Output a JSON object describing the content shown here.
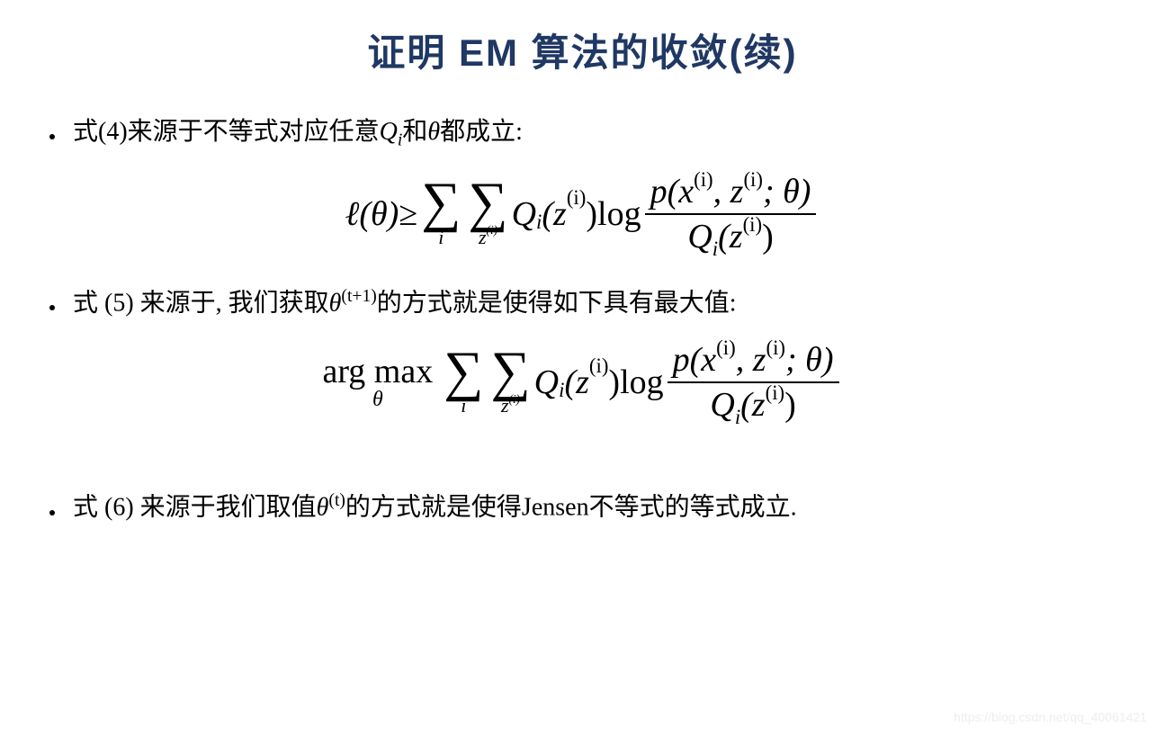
{
  "colors": {
    "title_color": "#1f3864",
    "text_color": "#000000",
    "background": "#ffffff",
    "watermark_color": "#eeeeee"
  },
  "typography": {
    "title_fontsize": 42,
    "body_fontsize": 28,
    "equation_fontsize": 38,
    "title_font": "SimHei",
    "body_font": "SimSun",
    "math_font": "Times New Roman"
  },
  "title": "证明 EM 算法的收敛(续)",
  "bullet1_pre": "式(4)来源于不等式对应任意",
  "bullet1_q": "Q",
  "bullet1_qi": "i",
  "bullet1_and": "和",
  "bullet1_theta": "θ",
  "bullet1_post": "都成立:",
  "eq1": {
    "lhs_ell": "ℓ",
    "lhs_theta": "(θ)",
    "geq": " ≥ ",
    "sum1_sym": "∑",
    "sum1_idx": "i",
    "sum2_sym": "∑",
    "sum2_idx_z": "z",
    "sum2_idx_sup": "(i)",
    "Qi": "Q",
    "Qi_sub": "i",
    "Qi_arg": "(z",
    "Qi_arg_sup": "(i)",
    "Qi_close": ")",
    "log": " log ",
    "frac_num_p": "p(x",
    "frac_num_sup1": "(i)",
    "frac_num_comma": ", z",
    "frac_num_sup2": "(i)",
    "frac_num_theta": "; θ)",
    "frac_den_Q": "Q",
    "frac_den_Qi": "i",
    "frac_den_arg": "(z",
    "frac_den_sup": "(i)",
    "frac_den_close": ")"
  },
  "bullet2_pre": "式 (5) 来源于, 我们获取",
  "bullet2_theta": "θ",
  "bullet2_sup": "(t+1)",
  "bullet2_post": "的方式就是使得如下具有最大值:",
  "eq2": {
    "argmax_text": "arg max",
    "argmax_sub": "θ",
    "sum1_sym": "∑",
    "sum1_idx": "i",
    "sum2_sym": "∑",
    "sum2_idx_z": "z",
    "sum2_idx_sup": "(i)",
    "Qi": "Q",
    "Qi_sub": "i",
    "Qi_arg": "(z",
    "Qi_arg_sup": "(i)",
    "Qi_close": ")",
    "log": " log ",
    "frac_num_p": "p(x",
    "frac_num_sup1": "(i)",
    "frac_num_comma": ", z",
    "frac_num_sup2": "(i)",
    "frac_num_theta": "; θ)",
    "frac_den_Q": "Q",
    "frac_den_Qi": "i",
    "frac_den_arg": "(z",
    "frac_den_sup": "(i)",
    "frac_den_close": ")"
  },
  "bullet3_pre": "式 (6) 来源于我们取值",
  "bullet3_theta": "θ",
  "bullet3_sup": "(t)",
  "bullet3_post": "的方式就是使得Jensen不等式的等式成立.",
  "watermark": "https://blog.csdn.net/qq_40061421"
}
